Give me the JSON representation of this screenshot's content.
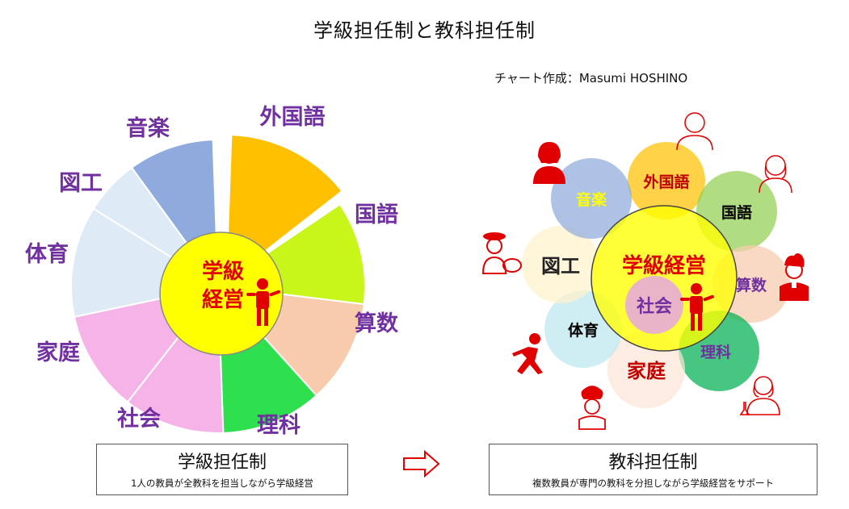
{
  "title": "学級担任制と教科担任制",
  "credit": "チャート作成：Masumi  HOSHINO",
  "left_diagram": {
    "center_label_line1": "学級",
    "center_label_line2": "経営",
    "segments": [
      {
        "id": "gaikokugo",
        "label": "外国語",
        "color": "#FFC000"
      },
      {
        "id": "kokugo",
        "label": "国語",
        "color": "#C8F51A"
      },
      {
        "id": "sansu",
        "label": "算数",
        "color": "#F8CBAD"
      },
      {
        "id": "rika",
        "label": "理科",
        "color": "#2EE04E"
      },
      {
        "id": "shakai",
        "label": "社会",
        "color": "#F5B3E8"
      },
      {
        "id": "katei",
        "label": "家庭",
        "color": "#F5B3E8"
      },
      {
        "id": "taiiku",
        "label": "体育",
        "color": "#DEEBF7"
      },
      {
        "id": "zuko",
        "label": "図工",
        "color": "#DEEBF7"
      },
      {
        "id": "ongaku",
        "label": "音楽",
        "color": "#8FAADC"
      }
    ]
  },
  "right_diagram": {
    "center_label": "学級経営",
    "shakai_label": "社会",
    "subjects": [
      {
        "id": "gaikokugo",
        "label": "外国語",
        "fill": "#FFC000",
        "text_color": "#C00000"
      },
      {
        "id": "kokugo",
        "label": "国語",
        "fill": "#92D050",
        "text_color": "#000000"
      },
      {
        "id": "sansu",
        "label": "算数",
        "fill": "#F8CBAD",
        "text_color": "#7030A0"
      },
      {
        "id": "rika",
        "label": "理科",
        "fill": "#00B050",
        "text_color": "#7030A0"
      },
      {
        "id": "katei",
        "label": "家庭",
        "fill": "#FBE5D6",
        "text_color": "#C00000"
      },
      {
        "id": "taiiku",
        "label": "体育",
        "fill": "#BDE8F0",
        "text_color": "#000000"
      },
      {
        "id": "zuko",
        "label": "図工",
        "fill": "#FFF2CC",
        "text_color": "#222222"
      },
      {
        "id": "ongaku",
        "label": "音楽",
        "fill": "#8FAADC",
        "text_color": "#FFFF00"
      }
    ]
  },
  "colors": {
    "label_purple": "#7030A0",
    "center_red": "#E00000",
    "center_yellow": "#FFFF00",
    "icon_red": "#E00000"
  },
  "left_caption": {
    "title": "学級担任制",
    "subtitle": "1人の教員が全教科を担当しながら学級経営"
  },
  "right_caption": {
    "title": "教科担任制",
    "subtitle": "複数教員が専門の教科を分担しながら学級経営をサポート"
  }
}
